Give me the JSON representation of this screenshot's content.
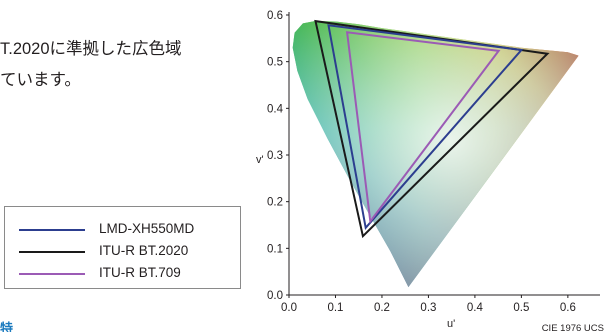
{
  "intro": {
    "line1": "T.2020に準拠した広色域",
    "line2": "ています。"
  },
  "footer_stub": "特",
  "legend": {
    "items": [
      {
        "label": "LMD-XH550MD",
        "color": "#2c3e8f"
      },
      {
        "label": "ITU-R BT.2020",
        "color": "#1a1a1a"
      },
      {
        "label": "ITU-R BT.709",
        "color": "#9b5bb5"
      }
    ]
  },
  "chart_data": {
    "type": "scatter",
    "title": "",
    "xlabel": "u'",
    "ylabel": "v'",
    "caption": "CIE 1976 UCS",
    "xlim": [
      0.0,
      0.65
    ],
    "ylim": [
      0.0,
      0.6
    ],
    "x_ticks": [
      "0.0",
      "0.1",
      "0.2",
      "0.3",
      "0.4",
      "0.5",
      "0.6"
    ],
    "y_ticks": [
      "0.0",
      "0.1",
      "0.2",
      "0.3",
      "0.4",
      "0.5",
      "0.6"
    ],
    "spectral_locus": [
      [
        0.257,
        0.017
      ],
      [
        0.218,
        0.094
      ],
      [
        0.173,
        0.172
      ],
      [
        0.13,
        0.248
      ],
      [
        0.083,
        0.335
      ],
      [
        0.04,
        0.42
      ],
      [
        0.018,
        0.48
      ],
      [
        0.008,
        0.53
      ],
      [
        0.012,
        0.562
      ],
      [
        0.03,
        0.582
      ],
      [
        0.055,
        0.587
      ],
      [
        0.1,
        0.586
      ],
      [
        0.15,
        0.58
      ],
      [
        0.2,
        0.572
      ],
      [
        0.25,
        0.565
      ],
      [
        0.3,
        0.558
      ],
      [
        0.35,
        0.551
      ],
      [
        0.4,
        0.544
      ],
      [
        0.45,
        0.537
      ],
      [
        0.5,
        0.53
      ],
      [
        0.55,
        0.525
      ],
      [
        0.6,
        0.52
      ],
      [
        0.623,
        0.513
      ]
    ],
    "series": [
      {
        "name": "ITU-R BT.2020",
        "color": "#1a1a1a",
        "points": [
          [
            0.556,
            0.517
          ],
          [
            0.057,
            0.587
          ],
          [
            0.159,
            0.126
          ]
        ]
      },
      {
        "name": "LMD-XH550MD",
        "color": "#2c3e8f",
        "points": [
          [
            0.5,
            0.525
          ],
          [
            0.085,
            0.578
          ],
          [
            0.165,
            0.144
          ]
        ]
      },
      {
        "name": "ITU-R BT.709",
        "color": "#9b5bb5",
        "points": [
          [
            0.451,
            0.523
          ],
          [
            0.125,
            0.563
          ],
          [
            0.175,
            0.158
          ]
        ]
      }
    ]
  }
}
